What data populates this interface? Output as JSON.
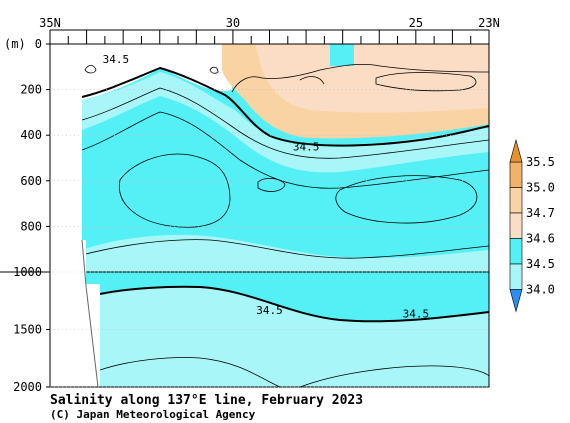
{
  "chart_data": {
    "type": "heatmap",
    "title": "Salinity along 137°E line, February 2023",
    "credit": "(C) Japan Meteorological Agency",
    "x_axis": {
      "direction": "north-to-south",
      "range": [
        35,
        23
      ],
      "tick_labels": [
        "35N",
        "30",
        "25",
        "23N"
      ],
      "tick_values": [
        35,
        30,
        25,
        23
      ]
    },
    "y_axis": {
      "unit_label": "(m)",
      "tick_labels": [
        "0",
        "200",
        "400",
        "600",
        "800",
        "1000",
        "1500",
        "2000"
      ],
      "tick_values": [
        0,
        200,
        400,
        600,
        800,
        1000,
        1500,
        2000
      ],
      "scale_note": "depth axis stretched above 1000 m"
    },
    "colorbar": {
      "levels": [
        "35.5",
        "35.0",
        "34.7",
        "34.6",
        "34.5",
        "34.0"
      ],
      "colors": {
        "above_35.5": "#e8912e",
        "35.0_35.5": "#f2b26a",
        "34.7_35.0": "#fad3a4",
        "34.6_34.7": "#fbdcc4",
        "34.5_34.6": "#55f0f6",
        "34.0_34.5": "#a8f6f8",
        "below_34.0": "#2a8ff0"
      }
    },
    "contour_labels": [
      {
        "text": "34.5",
        "lat": 33.2,
        "depth": 65
      },
      {
        "text": "34.5",
        "lat": 28.0,
        "depth": 450
      },
      {
        "text": "34.5",
        "lat": 29.0,
        "depth": 1330
      },
      {
        "text": "34.5",
        "lat": 25.0,
        "depth": 1360
      }
    ]
  }
}
